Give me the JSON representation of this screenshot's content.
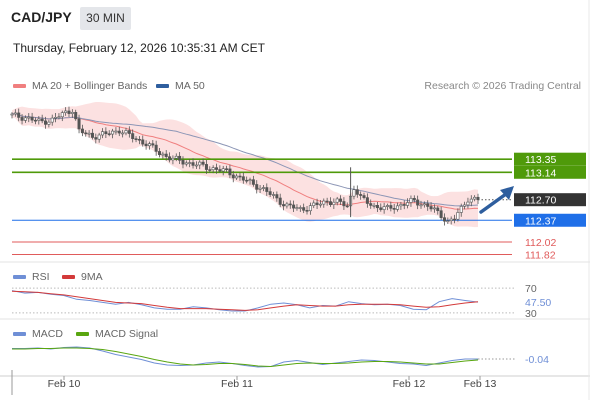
{
  "header": {
    "symbol": "CAD/JPY",
    "interval": "30 MIN",
    "datetime": "Thursday, February 12, 2026 10:35:31 AM CET"
  },
  "legend": {
    "ma20": "MA 20 + Bollinger Bands",
    "ma50": "MA 50",
    "copyright": "Research © 2026 Trading Central"
  },
  "colors": {
    "candle": "#555555",
    "ma20": "#f07f7f",
    "band_fill": "#fbdcdc",
    "ma50": "#8c96b6",
    "green_level": "#4f9a0a",
    "blue_level": "#1f6fe8",
    "red_level": "#e05b5b",
    "current": "#333333",
    "arrow": "#2e5e9e",
    "rsi": "#6f8fd6",
    "rsi_ma": "#d33a3a",
    "macd": "#6f8fd6",
    "macd_signal": "#59a610"
  },
  "chart_data": [
    {
      "type": "candlestick",
      "title": "CAD/JPY 30 MIN",
      "ylim": [
        111.7,
        114.3
      ],
      "x_ticks": [
        "Feb 10",
        "Feb 11",
        "Feb 12",
        "Feb 13"
      ],
      "series": [
        {
          "name": "MA 20 + Bollinger Bands"
        },
        {
          "name": "MA 50"
        }
      ],
      "levels": [
        {
          "value": 113.35,
          "label": "113.35",
          "color": "green"
        },
        {
          "value": 113.14,
          "label": "113.14",
          "color": "green"
        },
        {
          "value": 112.7,
          "label": "112.70",
          "color": "current"
        },
        {
          "value": 112.37,
          "label": "112.37",
          "color": "blue"
        },
        {
          "value": 112.02,
          "label": "112.02",
          "color": "red"
        },
        {
          "value": 111.82,
          "label": "111.82",
          "color": "red"
        }
      ],
      "close_points": [
        [
          0,
          114.05
        ],
        [
          4,
          114.02
        ],
        [
          8,
          113.95
        ],
        [
          12,
          113.98
        ],
        [
          16,
          114.1
        ],
        [
          18,
          114.15
        ],
        [
          20,
          113.8
        ],
        [
          24,
          113.72
        ],
        [
          28,
          113.75
        ],
        [
          32,
          113.82
        ],
        [
          36,
          113.7
        ],
        [
          40,
          113.6
        ],
        [
          44,
          113.45
        ],
        [
          48,
          113.35
        ],
        [
          52,
          113.3
        ],
        [
          56,
          113.25
        ],
        [
          60,
          113.2
        ],
        [
          64,
          113.15
        ],
        [
          68,
          113.05
        ],
        [
          70,
          113.0
        ],
        [
          74,
          112.9
        ],
        [
          78,
          112.75
        ],
        [
          82,
          112.6
        ],
        [
          86,
          112.55
        ],
        [
          90,
          112.6
        ],
        [
          94,
          112.68
        ],
        [
          98,
          112.65
        ],
        [
          100,
          112.6
        ],
        [
          102,
          112.9
        ],
        [
          104,
          112.72
        ],
        [
          108,
          112.6
        ],
        [
          112,
          112.55
        ],
        [
          116,
          112.62
        ],
        [
          120,
          112.68
        ],
        [
          124,
          112.6
        ],
        [
          128,
          112.45
        ],
        [
          130,
          112.35
        ],
        [
          132,
          112.4
        ],
        [
          134,
          112.55
        ],
        [
          136,
          112.72
        ],
        [
          139,
          112.7
        ]
      ]
    },
    {
      "type": "line",
      "title": "RSI",
      "ylim": [
        25,
        75
      ],
      "y_ticks": [
        30,
        70
      ],
      "current_label": "47.50",
      "series": [
        {
          "name": "RSI",
          "values": [
            66,
            62,
            63,
            60,
            58,
            52,
            50,
            47,
            44,
            47,
            43,
            38,
            36,
            36,
            40,
            38,
            35,
            33,
            33,
            38,
            44,
            46,
            43,
            38,
            42,
            41,
            48,
            45,
            43,
            44,
            42,
            36,
            35,
            48,
            53,
            50,
            47.5
          ]
        },
        {
          "name": "9MA",
          "values": [
            65,
            64,
            63,
            61,
            59,
            56,
            53,
            50,
            47,
            46,
            45,
            42,
            39,
            37,
            37,
            37,
            36,
            35,
            34,
            35,
            38,
            41,
            43,
            42,
            41,
            41,
            43,
            44,
            44,
            44,
            43,
            41,
            39,
            40,
            43,
            46,
            48
          ]
        }
      ]
    },
    {
      "type": "line",
      "title": "MACD",
      "ylim": [
        -0.3,
        0.3
      ],
      "current_label": "-0.04",
      "series": [
        {
          "name": "MACD",
          "values": [
            0.17,
            0.17,
            0.18,
            0.16,
            0.19,
            0.2,
            0.18,
            0.12,
            0.05,
            0.0,
            -0.05,
            -0.12,
            -0.16,
            -0.17,
            -0.16,
            -0.12,
            -0.1,
            -0.13,
            -0.17,
            -0.2,
            -0.19,
            -0.1,
            -0.07,
            -0.11,
            -0.15,
            -0.12,
            -0.09,
            -0.06,
            -0.07,
            -0.1,
            -0.13,
            -0.14,
            -0.17,
            -0.12,
            -0.07,
            -0.04,
            -0.04
          ]
        },
        {
          "name": "MACD Signal",
          "values": [
            0.16,
            0.16,
            0.17,
            0.17,
            0.18,
            0.18,
            0.17,
            0.15,
            0.11,
            0.06,
            0.01,
            -0.05,
            -0.1,
            -0.14,
            -0.16,
            -0.15,
            -0.13,
            -0.13,
            -0.15,
            -0.18,
            -0.19,
            -0.16,
            -0.13,
            -0.12,
            -0.13,
            -0.13,
            -0.12,
            -0.1,
            -0.09,
            -0.09,
            -0.1,
            -0.12,
            -0.14,
            -0.14,
            -0.11,
            -0.08,
            -0.06
          ]
        }
      ]
    }
  ]
}
